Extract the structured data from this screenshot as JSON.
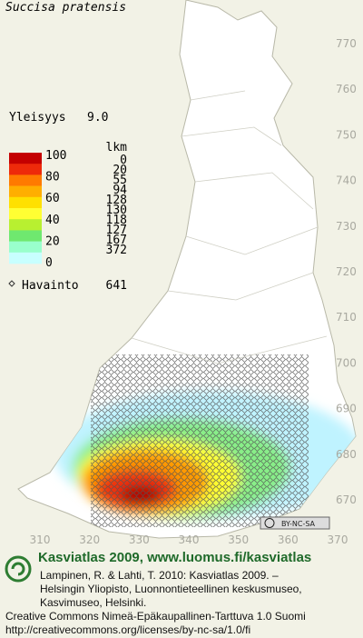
{
  "title": "Succisa pratensis",
  "frequency": {
    "label": "Yleisyys",
    "value": "9.0"
  },
  "legend": {
    "scale": [
      100,
      80,
      60,
      40,
      20,
      0
    ],
    "count_header": "lkm",
    "counts": [
      0,
      20,
      55,
      94,
      128,
      130,
      118,
      127,
      167,
      372
    ]
  },
  "observations": {
    "label": "Havainto",
    "value": "641"
  },
  "grid": {
    "north": [
      770,
      760,
      750,
      740,
      730,
      720,
      710,
      700,
      690,
      680,
      670
    ],
    "east": [
      310,
      320,
      330,
      340,
      350,
      360,
      370
    ]
  },
  "license_badge": "BY-NC-SA",
  "footer": {
    "title": "Kasviatlas 2009, www.luomus.fi/kasviatlas",
    "citation": [
      "Lampinen, R. & Lahti, T. 2010: Kasviatlas 2009. –",
      "Helsingin Yliopisto, Luonnontieteellinen keskusmuseo,",
      "Kasvimuseo, Helsinki."
    ],
    "license": "Creative Commons Nimeä-Epäkaupallinen-Tarttuva 1.0 Suomi",
    "url": "http://creativecommons.org/licenses/by-nc-sa/1.0/fi"
  }
}
